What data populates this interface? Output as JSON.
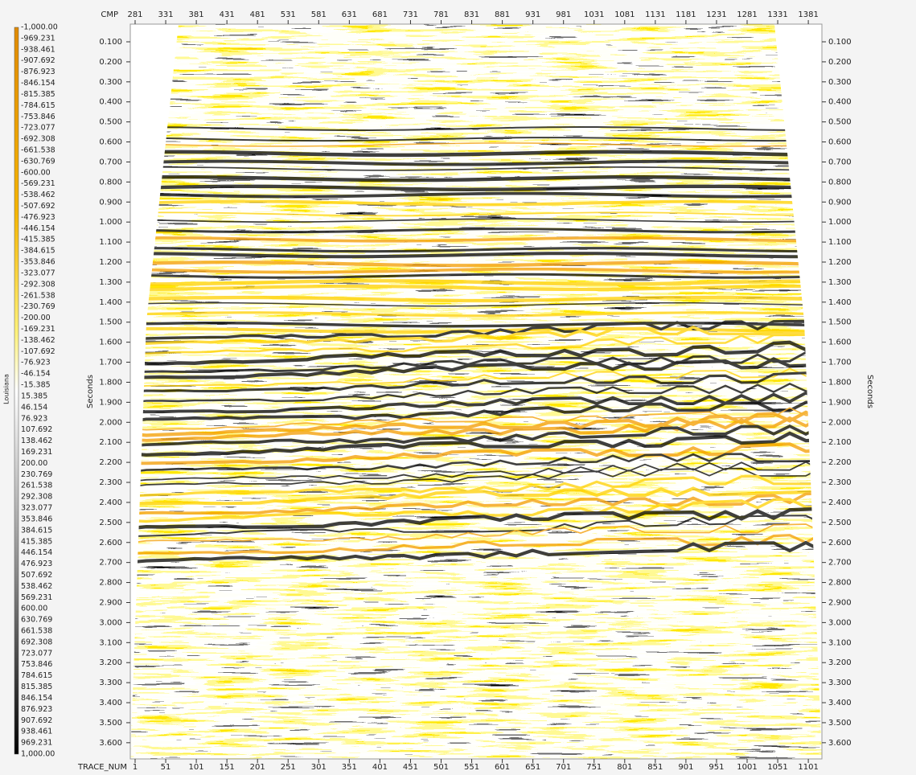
{
  "colorbar": {
    "title": "Louisiana",
    "labels": [
      "-1,000.00",
      "-969.231",
      "-938.461",
      "-907.692",
      "-876.923",
      "-846.154",
      "-815.385",
      "-784.615",
      "-753.846",
      "-723.077",
      "-692.308",
      "-661.538",
      "-630.769",
      "-600.00",
      "-569.231",
      "-538.462",
      "-507.692",
      "-476.923",
      "-446.154",
      "-415.385",
      "-384.615",
      "-353.846",
      "-323.077",
      "-292.308",
      "-261.538",
      "-230.769",
      "-200.00",
      "-169.231",
      "-138.462",
      "-107.692",
      "-76.923",
      "-46.154",
      "-15.385",
      "15.385",
      "46.154",
      "76.923",
      "107.692",
      "138.462",
      "169.231",
      "200.00",
      "230.769",
      "261.538",
      "292.308",
      "323.077",
      "353.846",
      "384.615",
      "415.385",
      "446.154",
      "476.923",
      "507.692",
      "538.462",
      "569.231",
      "600.00",
      "630.769",
      "661.538",
      "692.308",
      "723.077",
      "753.846",
      "784.615",
      "815.385",
      "846.154",
      "876.923",
      "907.692",
      "938.461",
      "969.231",
      "1,000.00"
    ]
  },
  "top_axis": {
    "label": "CMP",
    "ticks": [
      "281",
      "331",
      "381",
      "431",
      "481",
      "531",
      "581",
      "631",
      "681",
      "731",
      "781",
      "831",
      "881",
      "931",
      "981",
      "1031",
      "1081",
      "1131",
      "1181",
      "1231",
      "1281",
      "1331",
      "1381"
    ]
  },
  "bottom_axis": {
    "label": "TRACE_NUM",
    "ticks": [
      "1",
      "51",
      "101",
      "151",
      "201",
      "251",
      "301",
      "351",
      "401",
      "451",
      "501",
      "551",
      "601",
      "651",
      "701",
      "751",
      "801",
      "851",
      "901",
      "951",
      "1001",
      "1051",
      "1101"
    ]
  },
  "left_axis": {
    "label": "Seconds",
    "ticks": [
      "0.100",
      "0.200",
      "0.300",
      "0.400",
      "0.500",
      "0.600",
      "0.700",
      "0.800",
      "0.900",
      "1.000",
      "1.100",
      "1.200",
      "1.300",
      "1.400",
      "1.500",
      "1.600",
      "1.700",
      "1.800",
      "1.900",
      "2.000",
      "2.100",
      "2.200",
      "2.300",
      "2.400",
      "2.500",
      "2.600",
      "2.700",
      "2.800",
      "2.900",
      "3.000",
      "3.100",
      "3.200",
      "3.300",
      "3.400",
      "3.500",
      "3.600"
    ]
  },
  "right_axis": {
    "label": "Seconds",
    "ticks": [
      "0.100",
      "0.200",
      "0.300",
      "0.400",
      "0.500",
      "0.600",
      "0.700",
      "0.800",
      "0.900",
      "1.000",
      "1.100",
      "1.200",
      "1.300",
      "1.400",
      "1.500",
      "1.600",
      "1.700",
      "1.800",
      "1.900",
      "2.000",
      "2.100",
      "2.200",
      "2.300",
      "2.400",
      "2.500",
      "2.600",
      "2.700",
      "2.800",
      "2.900",
      "3.000",
      "3.100",
      "3.200",
      "3.300",
      "3.400",
      "3.500",
      "3.600"
    ]
  }
}
